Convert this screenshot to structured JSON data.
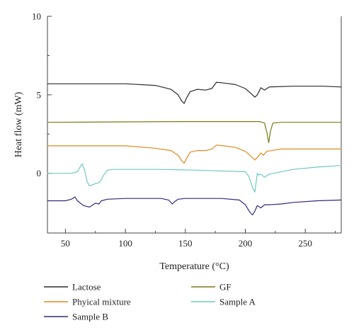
{
  "chart_data": {
    "type": "line",
    "xlabel": "Temperature (°C)",
    "ylabel": "Heat flow (mW)",
    "xlim": [
      35,
      280
    ],
    "ylim": [
      -3.8,
      10
    ],
    "xticks": [
      50,
      100,
      150,
      200,
      250
    ],
    "yticks": [
      0,
      5,
      10
    ],
    "grid": false,
    "legend_position": "bottom",
    "series": [
      {
        "name": "Lactose",
        "color": "#2b2b2b",
        "points": [
          [
            35,
            5.7
          ],
          [
            100,
            5.7
          ],
          [
            125,
            5.6
          ],
          [
            138,
            5.35
          ],
          [
            144,
            5.0
          ],
          [
            147,
            4.6
          ],
          [
            149,
            4.45
          ],
          [
            151,
            4.8
          ],
          [
            154,
            5.2
          ],
          [
            160,
            5.35
          ],
          [
            167,
            5.3
          ],
          [
            172,
            5.4
          ],
          [
            176,
            5.8
          ],
          [
            182,
            5.75
          ],
          [
            192,
            5.65
          ],
          [
            200,
            5.4
          ],
          [
            206,
            5.0
          ],
          [
            208,
            4.85
          ],
          [
            210,
            5.0
          ],
          [
            213,
            5.45
          ],
          [
            216,
            5.3
          ],
          [
            220,
            5.5
          ],
          [
            240,
            5.55
          ],
          [
            265,
            5.55
          ],
          [
            280,
            5.5
          ]
        ]
      },
      {
        "name": "GF",
        "color": "#7a7a16",
        "points": [
          [
            35,
            3.25
          ],
          [
            150,
            3.3
          ],
          [
            200,
            3.3
          ],
          [
            212,
            3.3
          ],
          [
            216,
            3.2
          ],
          [
            218,
            2.6
          ],
          [
            219.5,
            1.95
          ],
          [
            221,
            2.7
          ],
          [
            223,
            3.2
          ],
          [
            230,
            3.25
          ],
          [
            280,
            3.25
          ]
        ]
      },
      {
        "name": "Phyical mixture",
        "color": "#e0891e",
        "points": [
          [
            35,
            1.75
          ],
          [
            100,
            1.75
          ],
          [
            125,
            1.6
          ],
          [
            138,
            1.45
          ],
          [
            144,
            1.15
          ],
          [
            147,
            0.8
          ],
          [
            149,
            0.65
          ],
          [
            151,
            0.95
          ],
          [
            154,
            1.35
          ],
          [
            160,
            1.45
          ],
          [
            167,
            1.45
          ],
          [
            172,
            1.55
          ],
          [
            176,
            1.8
          ],
          [
            182,
            1.75
          ],
          [
            192,
            1.65
          ],
          [
            200,
            1.4
          ],
          [
            206,
            1.0
          ],
          [
            208,
            0.85
          ],
          [
            210,
            1.0
          ],
          [
            213,
            1.3
          ],
          [
            215,
            1.15
          ],
          [
            218,
            1.4
          ],
          [
            230,
            1.55
          ],
          [
            280,
            1.55
          ]
        ]
      },
      {
        "name": "Sample A",
        "color": "#6ec9c3",
        "points": [
          [
            35,
            0.0
          ],
          [
            55,
            0.0
          ],
          [
            60,
            0.1
          ],
          [
            63,
            0.5
          ],
          [
            64,
            0.6
          ],
          [
            66,
            0.2
          ],
          [
            68,
            -0.5
          ],
          [
            70,
            -0.8
          ],
          [
            72,
            -0.75
          ],
          [
            75,
            -0.65
          ],
          [
            78,
            -0.6
          ],
          [
            80,
            -0.4
          ],
          [
            82,
            -0.1
          ],
          [
            85,
            0.2
          ],
          [
            90,
            0.25
          ],
          [
            130,
            0.25
          ],
          [
            160,
            0.2
          ],
          [
            200,
            0.1
          ],
          [
            203,
            -0.2
          ],
          [
            206,
            -0.9
          ],
          [
            208,
            -1.2
          ],
          [
            209,
            -0.6
          ],
          [
            210,
            0.0
          ],
          [
            211,
            -0.1
          ],
          [
            213,
            -0.05
          ],
          [
            216,
            -0.25
          ],
          [
            220,
            -0.05
          ],
          [
            240,
            0.25
          ],
          [
            260,
            0.4
          ],
          [
            280,
            0.5
          ]
        ]
      },
      {
        "name": "Sample B",
        "color": "#2d2a7e",
        "points": [
          [
            35,
            -1.75
          ],
          [
            50,
            -1.75
          ],
          [
            55,
            -1.65
          ],
          [
            58,
            -1.5
          ],
          [
            60,
            -1.75
          ],
          [
            65,
            -2.05
          ],
          [
            70,
            -2.15
          ],
          [
            75,
            -1.9
          ],
          [
            78,
            -1.95
          ],
          [
            80,
            -1.75
          ],
          [
            85,
            -1.65
          ],
          [
            100,
            -1.6
          ],
          [
            130,
            -1.6
          ],
          [
            136,
            -1.7
          ],
          [
            139,
            -1.95
          ],
          [
            141,
            -1.8
          ],
          [
            144,
            -1.65
          ],
          [
            150,
            -1.6
          ],
          [
            180,
            -1.6
          ],
          [
            195,
            -1.7
          ],
          [
            200,
            -2.0
          ],
          [
            204,
            -2.5
          ],
          [
            206,
            -2.65
          ],
          [
            208,
            -2.4
          ],
          [
            210,
            -2.05
          ],
          [
            213,
            -2.2
          ],
          [
            216,
            -2.0
          ],
          [
            220,
            -2.0
          ],
          [
            230,
            -1.95
          ],
          [
            240,
            -1.85
          ],
          [
            260,
            -1.75
          ],
          [
            280,
            -1.7
          ]
        ]
      }
    ]
  }
}
